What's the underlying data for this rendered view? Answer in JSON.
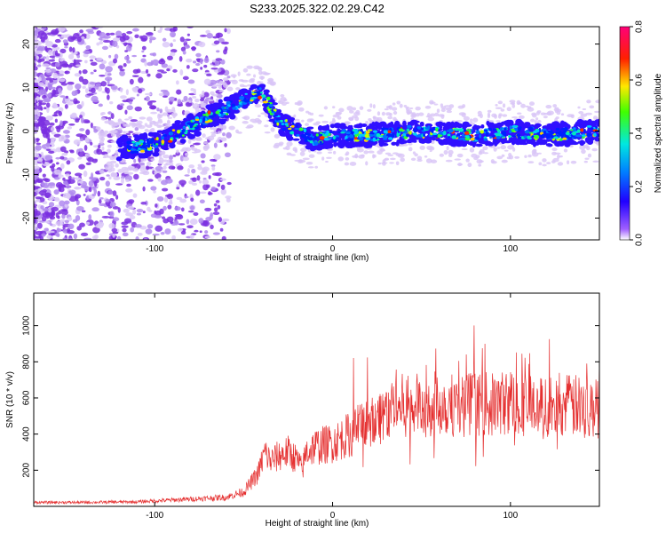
{
  "title": "S233.2025.322.02.29.C42",
  "colors": {
    "snr_line": "#e53030",
    "ridge_hot": "#d81818",
    "scatter": "#8a35e0"
  },
  "chart_data": [
    {
      "type": "heatmap",
      "title": "S233.2025.322.02.29.C42",
      "xlabel": "Height of straight line (km)",
      "ylabel": "Frequency (Hz)",
      "xlim": [
        -168,
        150
      ],
      "ylim": [
        -25,
        24
      ],
      "x_ticks": [
        -100,
        0,
        100
      ],
      "y_ticks": [
        -20,
        -10,
        0,
        10,
        20
      ],
      "colorbar": {
        "label": "Normalized spectral amplitude",
        "range": [
          0,
          0.8
        ],
        "ticks": [
          "0.0",
          "0.2",
          "0.4",
          "0.6",
          "0.8"
        ],
        "colormap": [
          "#ffffff",
          "#8800ff",
          "#0000ff",
          "#00ffff",
          "#00ff00",
          "#ffff00",
          "#ff0000",
          "#ff0088"
        ]
      },
      "ridge": {
        "description_points_x": [
          -118,
          -100,
          -80,
          -60,
          -40,
          -30,
          -20,
          -10,
          0,
          20,
          50,
          80,
          100,
          120,
          150
        ],
        "frequency_hz": [
          -4,
          -3,
          1,
          5,
          9,
          2,
          0,
          -2,
          -1,
          -1,
          0,
          -1,
          0,
          -1,
          0
        ]
      }
    },
    {
      "type": "line",
      "xlabel": "Height of straight line (km)",
      "ylabel": "SNR (10 * v/v)",
      "xlim": [
        -168,
        150
      ],
      "ylim": [
        0,
        1180
      ],
      "x_ticks": [
        -100,
        0,
        100
      ],
      "y_ticks": [
        200,
        400,
        600,
        800,
        1000
      ],
      "series": [
        {
          "name": "SNR",
          "x": [
            -168,
            -140,
            -110,
            -80,
            -60,
            -50,
            -42,
            -38,
            -35,
            -30,
            -25,
            -20,
            -17,
            -15,
            -10,
            0,
            10,
            20,
            30,
            40,
            50,
            60,
            70,
            80,
            90,
            100,
            110,
            120,
            130,
            140,
            150
          ],
          "y": [
            22,
            22,
            25,
            40,
            50,
            80,
            180,
            300,
            250,
            280,
            300,
            260,
            200,
            300,
            330,
            350,
            400,
            470,
            520,
            560,
            560,
            570,
            560,
            570,
            560,
            580,
            560,
            540,
            560,
            550,
            540
          ]
        }
      ]
    }
  ]
}
